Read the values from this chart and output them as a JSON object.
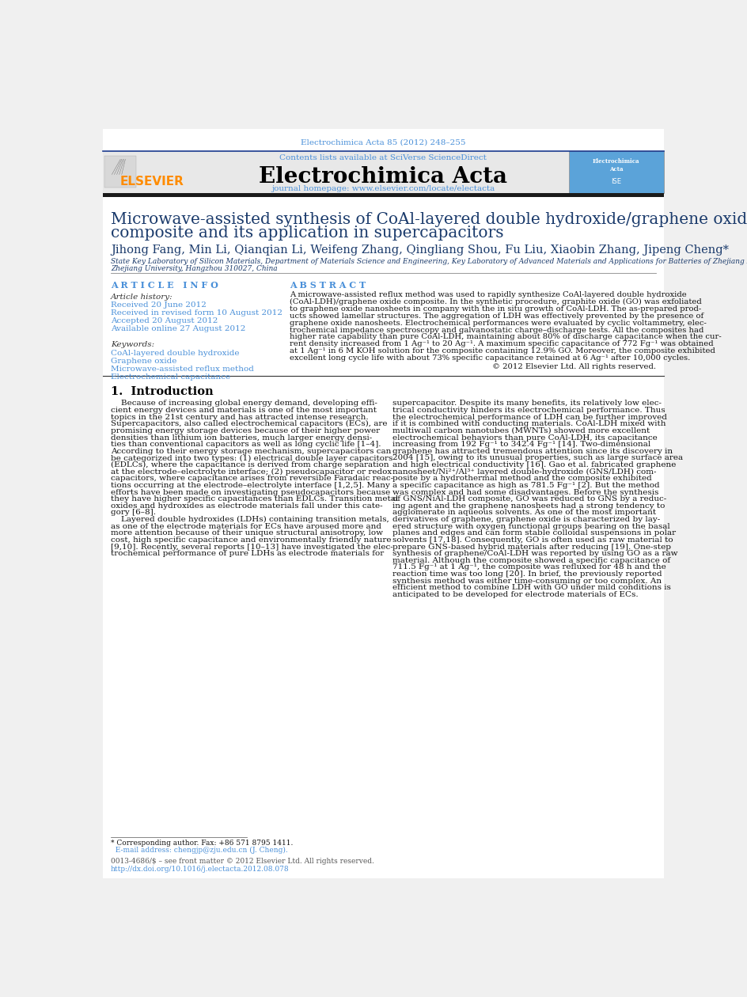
{
  "page_bg": "#f0f0f0",
  "paper_bg": "#ffffff",
  "journal_ref": "Electrochimica Acta 85 (2012) 248–255",
  "journal_ref_color": "#4a90d9",
  "header_bg": "#e8e8e8",
  "contents_text": "Contents lists available at SciVerse ScienceDirect",
  "contents_color": "#4a90d9",
  "journal_name": "Electrochimica Acta",
  "journal_name_color": "#000000",
  "homepage_text": "journal homepage: www.elsevier.com/locate/electacta",
  "homepage_color": "#4a90d9",
  "elsevier_color": "#ff8c00",
  "title_line1": "Microwave-assisted synthesis of CoAl-layered double hydroxide/graphene oxide",
  "title_line2": "composite and its application in supercapacitors",
  "title_color": "#1a3a6b",
  "authors": "Jihong Fang, Min Li, Qianqian Li, Weifeng Zhang, Qingliang Shou, Fu Liu, Xiaobin Zhang, Jipeng Cheng*",
  "authors_color": "#1a3a6b",
  "affiliation_line1": "State Key Laboratory of Silicon Materials, Department of Materials Science and Engineering, Key Laboratory of Advanced Materials and Applications for Batteries of Zhejiang Province,",
  "affiliation_line2": "Zhejiang University, Hangzhou 310027, China",
  "affiliation_color": "#1a3a6b",
  "article_info_label": "A R T I C L E   I N F O",
  "article_info_color": "#4a90d9",
  "abstract_label": "A B S T R A C T",
  "abstract_color": "#4a90d9",
  "article_history_label": "Article history:",
  "received1": "Received 20 June 2012",
  "received2": "Received in revised form 10 August 2012",
  "accepted": "Accepted 20 August 2012",
  "available": "Available online 27 August 2012",
  "keywords_label": "Keywords:",
  "kw1": "CoAl-layered double hydroxide",
  "kw2": "Graphene oxide",
  "kw3": "Microwave-assisted reflux method",
  "kw4": "Electrochemical capacitance",
  "keywords_color": "#4a90d9",
  "copyright": "© 2012 Elsevier Ltd. All rights reserved.",
  "intro_heading": "1.  Introduction",
  "footnote1": "* Corresponding author. Fax: +86 571 8795 1411.",
  "footnote2": "  E-mail address: chengjp@zju.edu.cn (J. Cheng).",
  "footer1": "0013-4686/$ – see front matter © 2012 Elsevier Ltd. All rights reserved.",
  "footer2": "http://dx.doi.org/10.1016/j.electacta.2012.08.078",
  "abstract_lines": [
    "A microwave-assisted reflux method was used to rapidly synthesize CoAl-layered double hydroxide",
    "(CoAl-LDH)/graphene oxide composite. In the synthetic procedure, graphite oxide (GO) was exfoliated",
    "to graphene oxide nanosheets in company with the in situ growth of CoAl-LDH. The as-prepared prod-",
    "ucts showed lamellar structures. The aggregation of LDH was effectively prevented by the presence of",
    "graphene oxide nanosheets. Electrochemical performances were evaluated by cyclic voltammetry, elec-",
    "trochemical impedance spectroscopy and galvanostatic charge–discharge tests. All the composites had",
    "higher rate capability than pure CoAl-LDH, maintaining about 80% of discharge capacitance when the cur-",
    "rent density increased from 1 Ag⁻¹ to 20 Ag⁻¹. A maximum specific capacitance of 772 Fg⁻¹ was obtained",
    "at 1 Ag⁻¹ in 6 M KOH solution for the composite containing 12.9% GO. Moreover, the composite exhibited",
    "excellent long cycle life with about 73% specific capacitance retained at 6 Ag⁻¹ after 10,000 cycles."
  ],
  "intro_col1_lines": [
    "    Because of increasing global energy demand, developing effi-",
    "cient energy devices and materials is one of the most important",
    "topics in the 21st century and has attracted intense research.",
    "Supercapacitors, also called electrochemical capacitors (ECs), are",
    "promising energy storage devices because of their higher power",
    "densities than lithium ion batteries, much larger energy densi-",
    "ties than conventional capacitors as well as long cyclic life [1–4].",
    "According to their energy storage mechanism, supercapacitors can",
    "be categorized into two types: (1) electrical double layer capacitors",
    "(EDLCs), where the capacitance is derived from charge separation",
    "at the electrode–electrolyte interface; (2) pseudocapacitor or redox",
    "capacitors, where capacitance arises from reversible Faradaic reac-",
    "tions occurring at the electrode–electrolyte interface [1,2,5]. Many",
    "efforts have been made on investigating pseudocapacitors because",
    "they have higher specific capacitances than EDLCs. Transition metal",
    "oxides and hydroxides as electrode materials fall under this cate-",
    "gory [6–8].",
    "    Layered double hydroxides (LDHs) containing transition metals,",
    "as one of the electrode materials for ECs have aroused more and",
    "more attention because of their unique structural anisotropy, low",
    "cost, high specific capacitance and environmentally friendly nature",
    "[9,10]. Recently, several reports [10–13] have investigated the elec-",
    "trochemical performance of pure LDHs as electrode materials for"
  ],
  "intro_col2_lines": [
    "supercapacitor. Despite its many benefits, its relatively low elec-",
    "trical conductivity hinders its electrochemical performance. Thus",
    "the electrochemical performance of LDH can be further improved",
    "if it is combined with conducting materials. CoAl-LDH mixed with",
    "multiwall carbon nanotubes (MWNTs) showed more excellent",
    "electrochemical behaviors than pure CoAl-LDH, its capacitance",
    "increasing from 192 Fg⁻¹ to 342.4 Fg⁻¹ [14]. Two-dimensional",
    "graphene has attracted tremendous attention since its discovery in",
    "2004 [15], owing to its unusual properties, such as large surface area",
    "and high electrical conductivity [16]. Gao et al. fabricated graphene",
    "nanosheet/Ni²⁺/Al³⁺ layered double-hydroxide (GNS/LDH) com-",
    "posite by a hydrothermal method and the composite exhibited",
    "a specific capacitance as high as 781.5 Fg⁻¹ [2]. But the method",
    "was complex and had some disadvantages. Before the synthesis",
    "of GNS/NiAl-LDH composite, GO was reduced to GNS by a reduc-",
    "ing agent and the graphene nanosheets had a strong tendency to",
    "agglomerate in aqueous solvents. As one of the most important",
    "derivatives of graphene, graphene oxide is characterized by lay-",
    "ered structure with oxygen functional groups bearing on the basal",
    "planes and edges and can form stable colloidal suspensions in polar",
    "solvents [17,18]. Consequently, GO is often used as raw material to",
    "prepare GNS-based hybrid materials after reducing [19]. One-step",
    "synthesis of graphene/CoAl-LDH was reported by using GO as a raw",
    "material. Although the composite showed a specific capacitance of",
    "711.5 Fg⁻¹ at 1 Ag⁻¹, the composite was refluxed for 48 h and the",
    "reaction time was too long [20]. In brief, the previously reported",
    "synthesis method was either time-consuming or too complex. An",
    "efficient method to combine LDH with GO under mild conditions is",
    "anticipated to be developed for electrode materials of ECs."
  ]
}
